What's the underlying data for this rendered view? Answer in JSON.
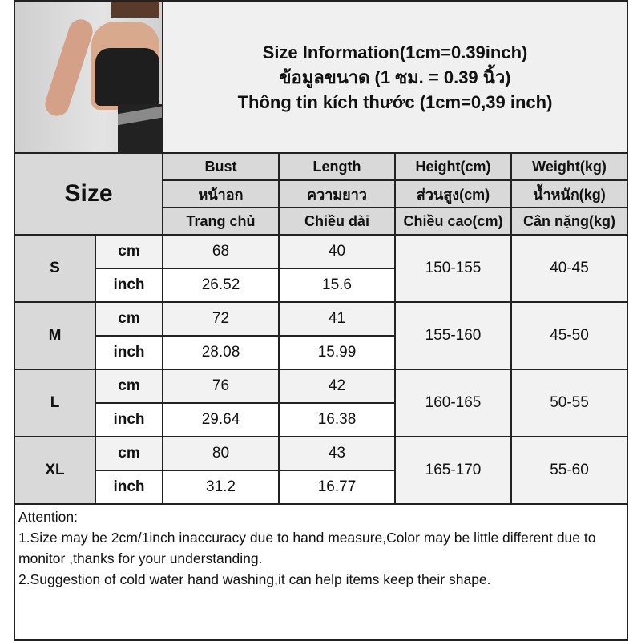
{
  "header": {
    "title_lines": [
      "Size Information(1cm=0.39inch)",
      "ข้อมูลขนาด (1 ซม. = 0.39 นิ้ว)",
      "Thông tin kích thước (1cm=0,39 inch)"
    ]
  },
  "photo": {
    "alt": "product-photo-black-crop-top"
  },
  "table": {
    "size_label": "Size",
    "columns": [
      {
        "en": "Bust",
        "th": "หน้าอก",
        "vi": "Trang chủ"
      },
      {
        "en": "Length",
        "th": "ความยาว",
        "vi": "Chiều dài"
      },
      {
        "en": "Height(cm)",
        "th": "ส่วนสูง(cm)",
        "vi": "Chiều cao(cm)"
      },
      {
        "en": "Weight(kg)",
        "th": "น้ำหนัก(kg)",
        "vi": "Cân nặng(kg)"
      }
    ],
    "units": {
      "cm": "cm",
      "inch": "inch"
    },
    "rows": [
      {
        "size": "S",
        "bust_cm": "68",
        "length_cm": "40",
        "bust_inch": "26.52",
        "length_inch": "15.6",
        "height": "150-155",
        "weight": "40-45"
      },
      {
        "size": "M",
        "bust_cm": "72",
        "length_cm": "41",
        "bust_inch": "28.08",
        "length_inch": "15.99",
        "height": "155-160",
        "weight": "45-50"
      },
      {
        "size": "L",
        "bust_cm": "76",
        "length_cm": "42",
        "bust_inch": "29.64",
        "length_inch": "16.38",
        "height": "160-165",
        "weight": "50-55"
      },
      {
        "size": "XL",
        "bust_cm": "80",
        "length_cm": "43",
        "bust_inch": "31.2",
        "length_inch": "16.77",
        "height": "165-170",
        "weight": "55-60"
      }
    ]
  },
  "attention": {
    "heading": "Attention:",
    "notes": [
      "1.Size may be 2cm/1inch inaccuracy due to hand measure,Color may be little different due to monitor ,thanks for your understanding.",
      "2.Suggestion of cold water hand washing,it can help items keep their shape."
    ]
  }
}
